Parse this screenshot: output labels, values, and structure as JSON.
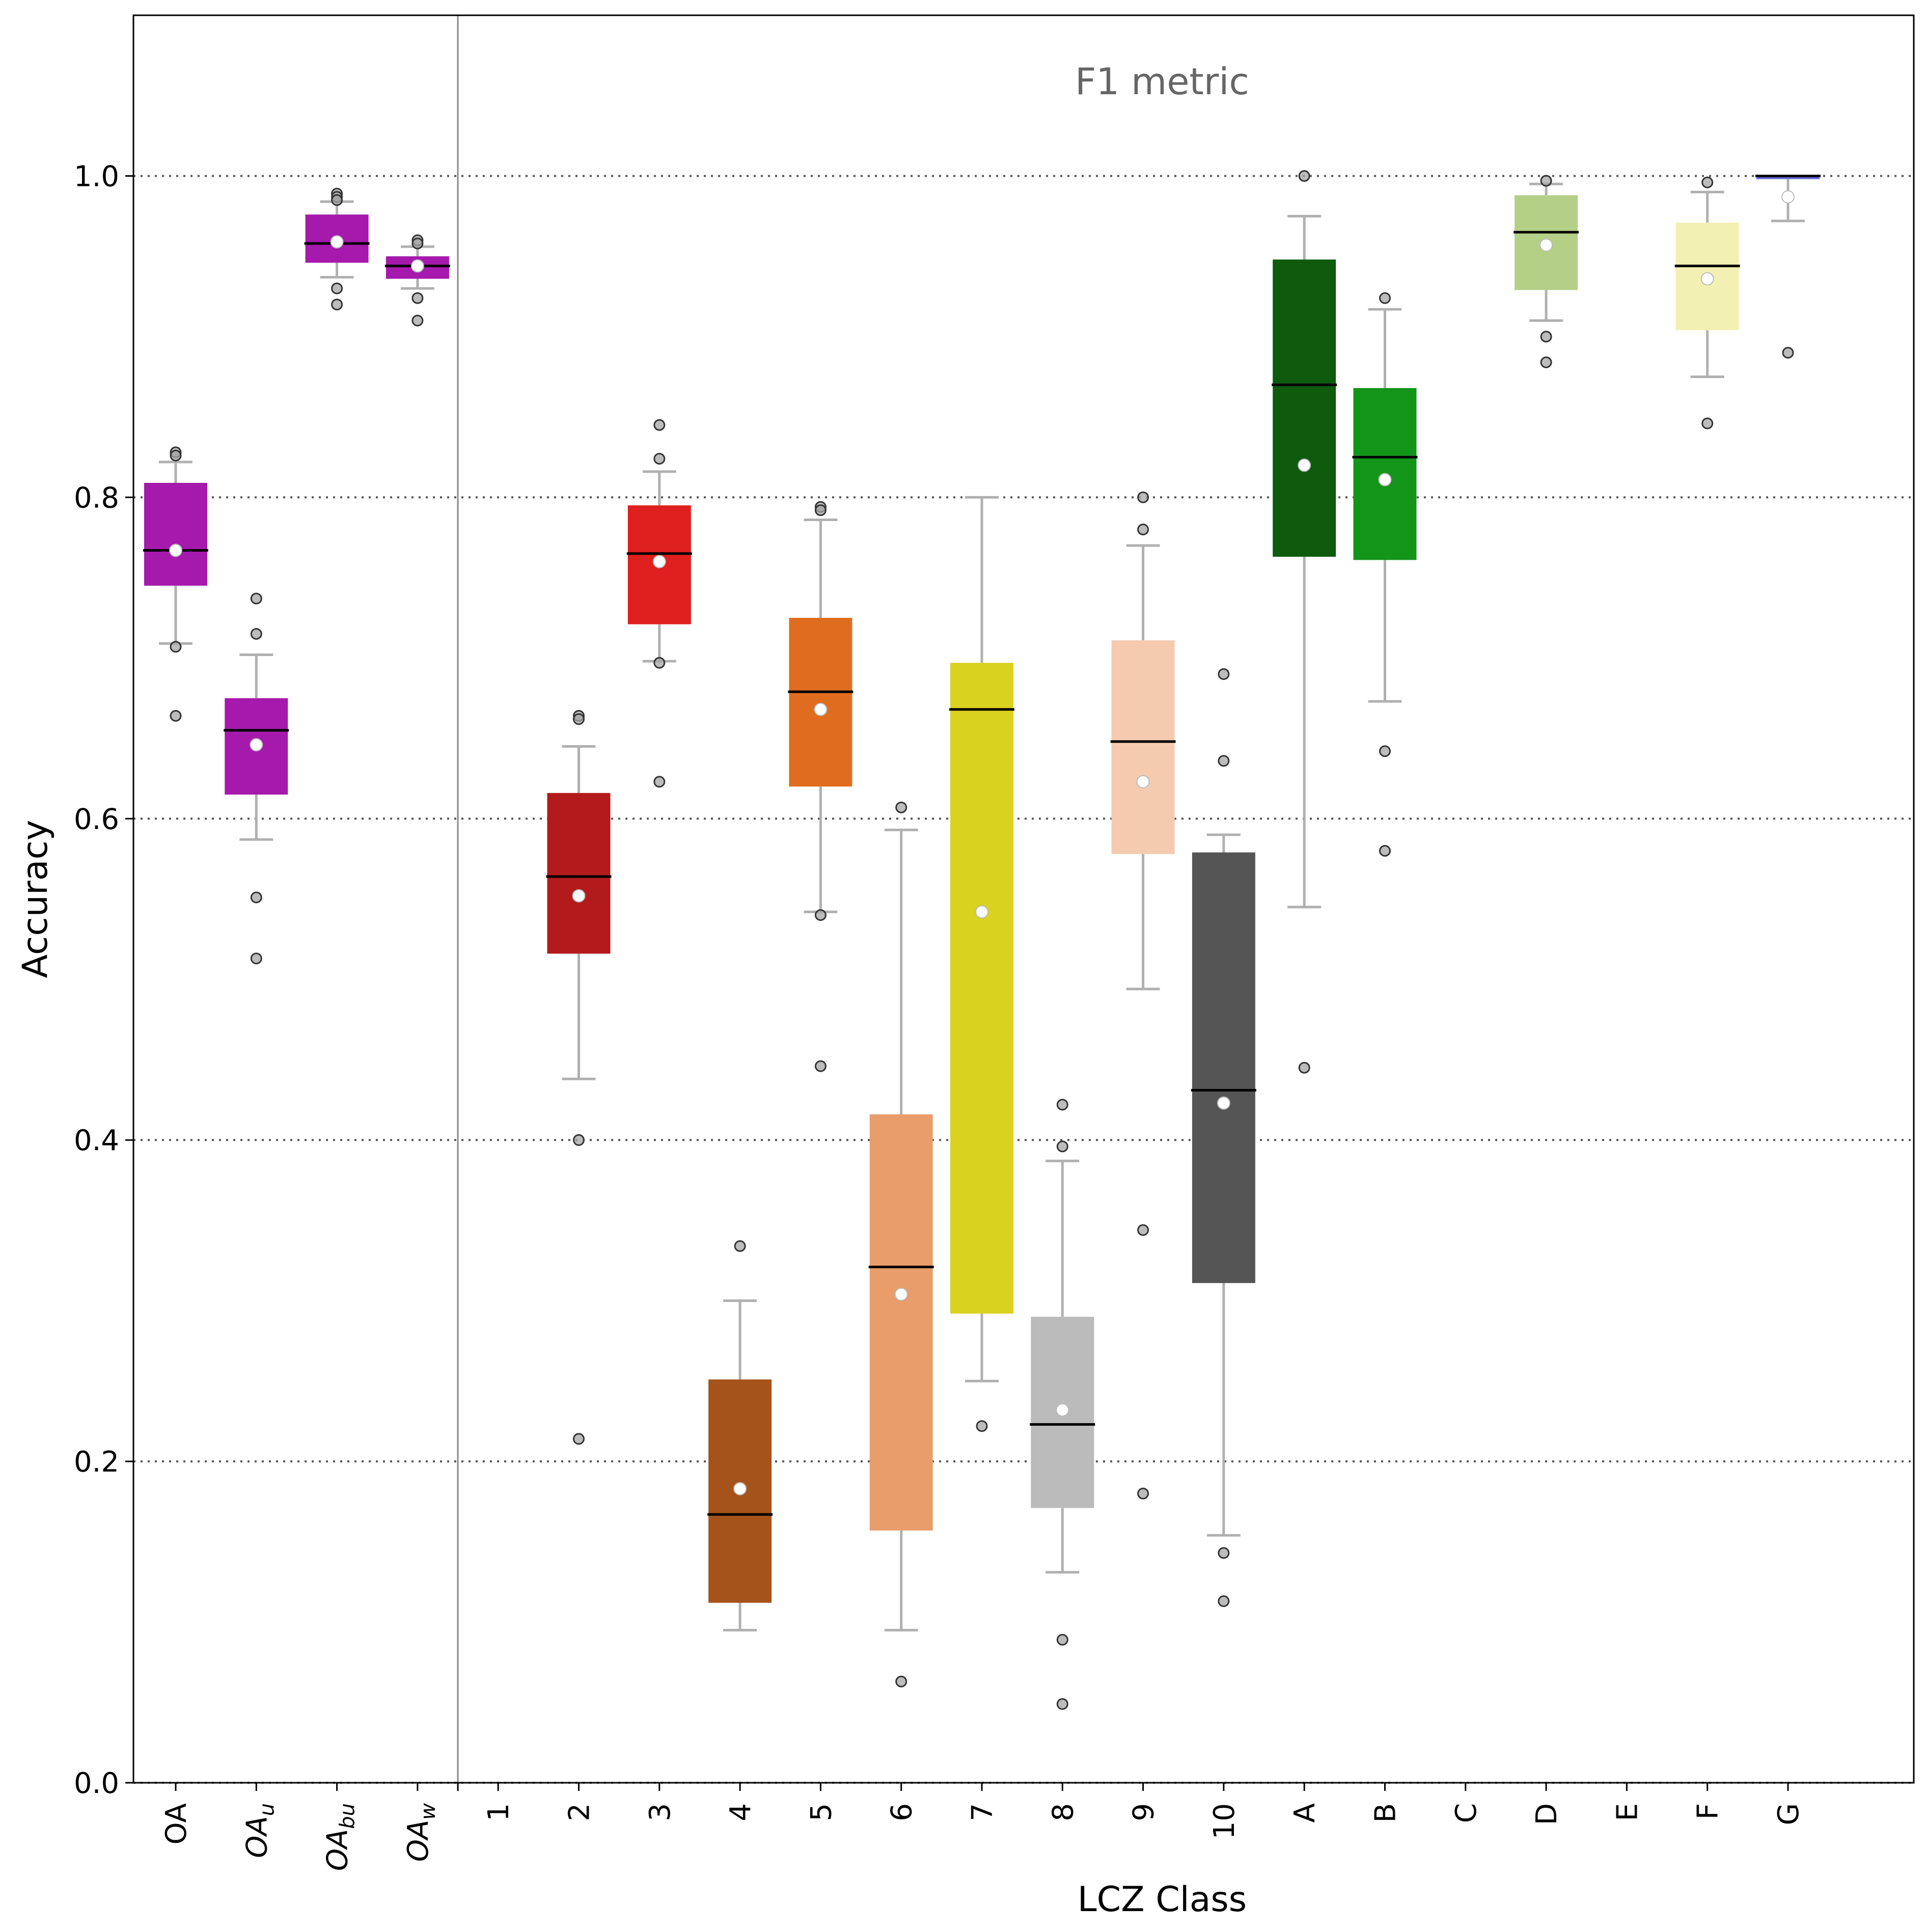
{
  "chart_data": {
    "type": "box",
    "title": "",
    "annotation": "F1 metric",
    "xlabel": "LCZ Class",
    "ylabel": "Accuracy",
    "ylim": [
      0.0,
      1.1
    ],
    "yticks": [
      "0.0",
      "0.2",
      "0.4",
      "0.6",
      "0.8",
      "1.0"
    ],
    "grid": "dotted horizontal at y ticks",
    "legend": "none",
    "mean_marker": "white circle",
    "series": [
      {
        "label": "OA",
        "sub": "",
        "color": "#a51aac",
        "whislo": 0.709,
        "q1": 0.745,
        "med": 0.767,
        "q3": 0.809,
        "whishi": 0.822,
        "mean": 0.767,
        "fliers": [
          0.828,
          0.826,
          0.707,
          0.664
        ]
      },
      {
        "label": "OA",
        "sub": "u",
        "color": "#a51aac",
        "whislo": 0.587,
        "q1": 0.615,
        "med": 0.655,
        "q3": 0.675,
        "whishi": 0.702,
        "mean": 0.646,
        "fliers": [
          0.737,
          0.715,
          0.551,
          0.513
        ]
      },
      {
        "label": "OA",
        "sub": "bu",
        "color": "#a51aac",
        "whislo": 0.937,
        "q1": 0.946,
        "med": 0.958,
        "q3": 0.976,
        "whishi": 0.984,
        "mean": 0.959,
        "fliers": [
          0.989,
          0.987,
          0.985,
          0.93,
          0.92
        ]
      },
      {
        "label": "OA",
        "sub": "w",
        "color": "#a51aac",
        "whislo": 0.93,
        "q1": 0.936,
        "med": 0.944,
        "q3": 0.95,
        "whishi": 0.956,
        "mean": 0.944,
        "fliers": [
          0.96,
          0.958,
          0.924,
          0.91
        ]
      },
      {
        "label": "1",
        "sub": "",
        "color": "#8c0000",
        "empty": true
      },
      {
        "label": "2",
        "sub": "",
        "color": "#b31a1c",
        "whislo": 0.438,
        "q1": 0.516,
        "med": 0.564,
        "q3": 0.616,
        "whishi": 0.645,
        "mean": 0.552,
        "fliers": [
          0.664,
          0.662,
          0.4,
          0.214
        ]
      },
      {
        "label": "3",
        "sub": "",
        "color": "#e01f1f",
        "whislo": 0.698,
        "q1": 0.721,
        "med": 0.765,
        "q3": 0.795,
        "whishi": 0.816,
        "mean": 0.76,
        "fliers": [
          0.845,
          0.824,
          0.697,
          0.623
        ]
      },
      {
        "label": "4",
        "sub": "",
        "color": "#a5531a",
        "whislo": 0.095,
        "q1": 0.112,
        "med": 0.167,
        "q3": 0.251,
        "whishi": 0.3,
        "mean": 0.183,
        "fliers": [
          0.334
        ]
      },
      {
        "label": "5",
        "sub": "",
        "color": "#e06d1f",
        "whislo": 0.542,
        "q1": 0.62,
        "med": 0.679,
        "q3": 0.725,
        "whishi": 0.786,
        "mean": 0.668,
        "fliers": [
          0.794,
          0.792,
          0.54,
          0.446
        ]
      },
      {
        "label": "6",
        "sub": "",
        "color": "#e99d6a",
        "whislo": 0.095,
        "q1": 0.157,
        "med": 0.321,
        "q3": 0.416,
        "whishi": 0.593,
        "mean": 0.304,
        "fliers": [
          0.607,
          0.063
        ]
      },
      {
        "label": "7",
        "sub": "",
        "color": "#d9d21f",
        "whislo": 0.25,
        "q1": 0.292,
        "med": 0.668,
        "q3": 0.697,
        "whishi": 0.8,
        "mean": 0.542,
        "fliers": [
          0.222
        ]
      },
      {
        "label": "8",
        "sub": "",
        "color": "#bbbbbb",
        "whislo": 0.131,
        "q1": 0.171,
        "med": 0.223,
        "q3": 0.29,
        "whishi": 0.387,
        "mean": 0.232,
        "fliers": [
          0.422,
          0.396,
          0.089,
          0.049
        ]
      },
      {
        "label": "9",
        "sub": "",
        "color": "#f5cbb0",
        "whislo": 0.494,
        "q1": 0.578,
        "med": 0.648,
        "q3": 0.711,
        "whishi": 0.77,
        "mean": 0.623,
        "fliers": [
          0.8,
          0.78,
          0.344,
          0.18
        ]
      },
      {
        "label": "10",
        "sub": "",
        "color": "#555555",
        "whislo": 0.154,
        "q1": 0.311,
        "med": 0.431,
        "q3": 0.579,
        "whishi": 0.59,
        "mean": 0.423,
        "fliers": [
          0.69,
          0.636,
          0.143,
          0.113
        ]
      },
      {
        "label": "A",
        "sub": "",
        "color": "#0e5b0e",
        "whislo": 0.545,
        "q1": 0.763,
        "med": 0.87,
        "q3": 0.948,
        "whishi": 0.975,
        "mean": 0.82,
        "fliers": [
          1.0,
          0.445
        ]
      },
      {
        "label": "B",
        "sub": "",
        "color": "#13951a",
        "whislo": 0.673,
        "q1": 0.761,
        "med": 0.825,
        "q3": 0.868,
        "whishi": 0.917,
        "mean": 0.811,
        "fliers": [
          0.924,
          0.642,
          0.58
        ]
      },
      {
        "label": "C",
        "sub": "",
        "color": "#648c23",
        "empty": true
      },
      {
        "label": "D",
        "sub": "",
        "color": "#b4d087",
        "whislo": 0.91,
        "q1": 0.929,
        "med": 0.965,
        "q3": 0.988,
        "whishi": 0.995,
        "mean": 0.957,
        "fliers": [
          0.997,
          0.9,
          0.884
        ]
      },
      {
        "label": "E",
        "sub": "",
        "color": "#000000",
        "empty": true
      },
      {
        "label": "F",
        "sub": "",
        "color": "#f3f0b3",
        "whislo": 0.875,
        "q1": 0.904,
        "med": 0.944,
        "q3": 0.971,
        "whishi": 0.99,
        "mean": 0.936,
        "fliers": [
          0.996,
          0.846
        ]
      },
      {
        "label": "G",
        "sub": "",
        "color": "#6b6bd9",
        "whislo": 0.972,
        "q1": 0.998,
        "med": 1.0,
        "q3": 1.0,
        "whishi": 1.0,
        "mean": 0.987,
        "fliers": [
          0.89
        ]
      }
    ]
  }
}
